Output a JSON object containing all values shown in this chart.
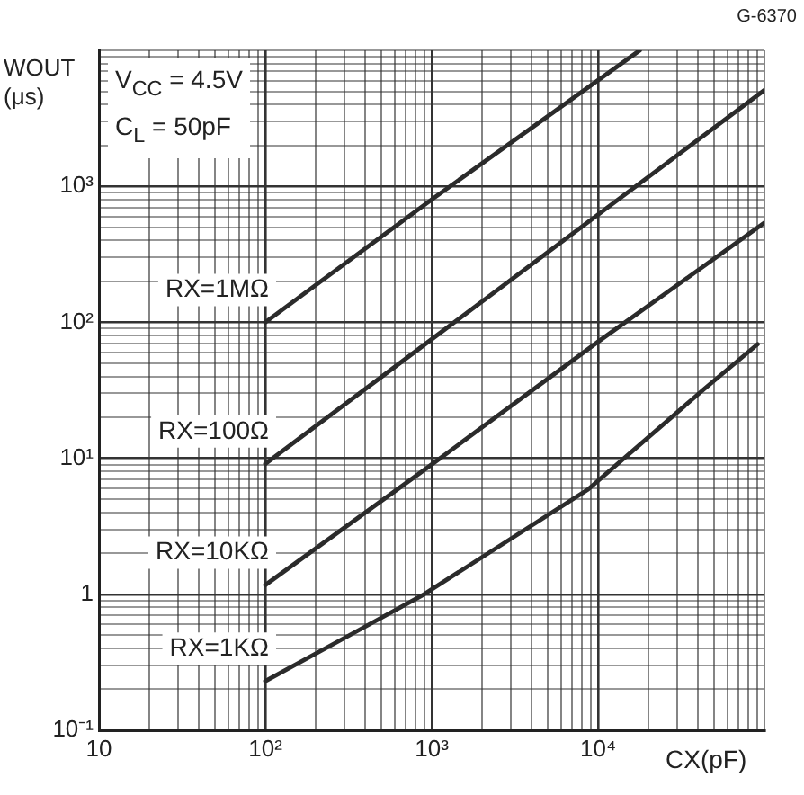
{
  "chart_data": {
    "type": "line",
    "title": "G-6370",
    "xlabel": "CX(pF)",
    "ylabel": "WOUT (μs)",
    "annotations": [
      "V$_{CC}$ = 4.5V",
      "C$_{L}$ = 50pF"
    ],
    "log": "xy",
    "grid": true,
    "legend": false,
    "marker": "none",
    "line_style": "solid",
    "xlim": [
      10,
      100000
    ],
    "ylim": [
      0.1,
      10000
    ],
    "xticks": [
      {
        "value": 10,
        "label": "10"
      },
      {
        "value": 20,
        "label": null
      },
      {
        "value": 30,
        "label": null
      },
      {
        "value": 40,
        "label": null
      },
      {
        "value": 50,
        "label": null
      },
      {
        "value": 60,
        "label": null
      },
      {
        "value": 70,
        "label": null
      },
      {
        "value": 80,
        "label": null
      },
      {
        "value": 90,
        "label": null
      },
      {
        "value": 100,
        "label": "10²"
      },
      {
        "value": 200,
        "label": null
      },
      {
        "value": 300,
        "label": null
      },
      {
        "value": 400,
        "label": null
      },
      {
        "value": 500,
        "label": null
      },
      {
        "value": 600,
        "label": null
      },
      {
        "value": 700,
        "label": null
      },
      {
        "value": 800,
        "label": null
      },
      {
        "value": 900,
        "label": null
      },
      {
        "value": 1000,
        "label": "10³"
      },
      {
        "value": 2000,
        "label": null
      },
      {
        "value": 3000,
        "label": null
      },
      {
        "value": 4000,
        "label": null
      },
      {
        "value": 5000,
        "label": null
      },
      {
        "value": 6000,
        "label": null
      },
      {
        "value": 7000,
        "label": null
      },
      {
        "value": 8000,
        "label": null
      },
      {
        "value": 9000,
        "label": null
      },
      {
        "value": 10000,
        "label": "10⁴"
      },
      {
        "value": 20000,
        "label": null
      },
      {
        "value": 30000,
        "label": null
      },
      {
        "value": 40000,
        "label": null
      },
      {
        "value": 50000,
        "label": null
      },
      {
        "value": 60000,
        "label": null
      },
      {
        "value": 70000,
        "label": null
      },
      {
        "value": 80000,
        "label": null
      },
      {
        "value": 90000,
        "label": null
      },
      {
        "value": 100000,
        "label": null
      }
    ],
    "yticks": [
      {
        "value": 0.1,
        "label": "10⁻¹"
      },
      {
        "value": 0.2,
        "label": null
      },
      {
        "value": 0.3,
        "label": null
      },
      {
        "value": 0.4,
        "label": null
      },
      {
        "value": 0.5,
        "label": null
      },
      {
        "value": 0.6,
        "label": null
      },
      {
        "value": 0.7,
        "label": null
      },
      {
        "value": 0.8,
        "label": null
      },
      {
        "value": 0.9,
        "label": null
      },
      {
        "value": 1,
        "label": "1"
      },
      {
        "value": 2,
        "label": null
      },
      {
        "value": 3,
        "label": null
      },
      {
        "value": 4,
        "label": null
      },
      {
        "value": 5,
        "label": null
      },
      {
        "value": 6,
        "label": null
      },
      {
        "value": 7,
        "label": null
      },
      {
        "value": 8,
        "label": null
      },
      {
        "value": 9,
        "label": null
      },
      {
        "value": 10,
        "label": "10¹"
      },
      {
        "value": 20,
        "label": null
      },
      {
        "value": 30,
        "label": null
      },
      {
        "value": 40,
        "label": null
      },
      {
        "value": 50,
        "label": null
      },
      {
        "value": 60,
        "label": null
      },
      {
        "value": 70,
        "label": null
      },
      {
        "value": 80,
        "label": null
      },
      {
        "value": 90,
        "label": null
      },
      {
        "value": 100,
        "label": "10²"
      },
      {
        "value": 200,
        "label": null
      },
      {
        "value": 300,
        "label": null
      },
      {
        "value": 400,
        "label": null
      },
      {
        "value": 500,
        "label": null
      },
      {
        "value": 600,
        "label": null
      },
      {
        "value": 700,
        "label": null
      },
      {
        "value": 800,
        "label": null
      },
      {
        "value": 900,
        "label": null
      },
      {
        "value": 1000,
        "label": "10³"
      },
      {
        "value": 2000,
        "label": null
      },
      {
        "value": 3000,
        "label": null
      },
      {
        "value": 4000,
        "label": null
      },
      {
        "value": 5000,
        "label": null
      },
      {
        "value": 6000,
        "label": null
      },
      {
        "value": 7000,
        "label": null
      },
      {
        "value": 8000,
        "label": null
      },
      {
        "value": 9000,
        "label": null
      },
      {
        "value": 10000,
        "label": null
      }
    ],
    "series": [
      {
        "name": "RX=1MΩ",
        "color": "#2b2b2b",
        "x": [
          100,
          1000,
          17800
        ],
        "values": [
          100,
          800,
          10000
        ]
      },
      {
        "name": "RX=100Ω",
        "color": "#2b2b2b",
        "x": [
          100,
          1000,
          10000,
          100000
        ],
        "values": [
          9.1,
          75,
          620,
          5100
        ]
      },
      {
        "name": "RX=10KΩ",
        "color": "#2b2b2b",
        "x": [
          100,
          1000,
          10000,
          100000
        ],
        "values": [
          1.17,
          9,
          72,
          540
        ]
      },
      {
        "name": "RX=1KΩ",
        "color": "#2b2b2b",
        "x": [
          100,
          360,
          900,
          8700,
          43000,
          91000
        ],
        "values": [
          0.23,
          0.54,
          1,
          5.9,
          32,
          69
        ]
      }
    ]
  }
}
